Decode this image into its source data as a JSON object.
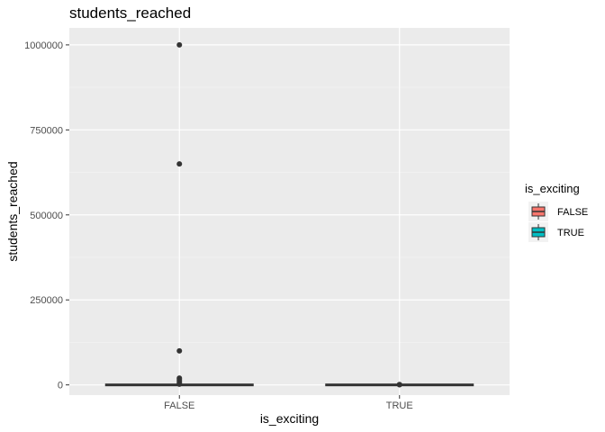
{
  "chart_data": {
    "type": "boxplot",
    "title": "students_reached",
    "xlabel": "is_exciting",
    "ylabel": "students_reached",
    "categories": [
      "FALSE",
      "TRUE"
    ],
    "ylim": [
      -30000,
      1050000
    ],
    "yticks": [
      0,
      250000,
      500000,
      750000,
      1000000
    ],
    "ytick_labels": [
      "0",
      "250000",
      "500000",
      "750000",
      "1000000"
    ],
    "grid": true,
    "legend": {
      "title": "is_exciting",
      "placement": "right",
      "entries": [
        {
          "label": "FALSE",
          "color": "#F8766D"
        },
        {
          "label": "TRUE",
          "color": "#00BFC4"
        }
      ]
    },
    "series": [
      {
        "category": "FALSE",
        "color": "#F8766D",
        "box": {
          "q1": 0,
          "median": 0,
          "q3": 0,
          "whisker_low": 0,
          "whisker_high": 0
        },
        "outliers": [
          1000000,
          650000,
          100000,
          20000,
          15000,
          10000,
          5000,
          2000
        ]
      },
      {
        "category": "TRUE",
        "color": "#00BFC4",
        "box": {
          "q1": 0,
          "median": 0,
          "q3": 0,
          "whisker_low": 0,
          "whisker_high": 0
        },
        "outliers": [
          1000,
          500
        ]
      }
    ]
  }
}
